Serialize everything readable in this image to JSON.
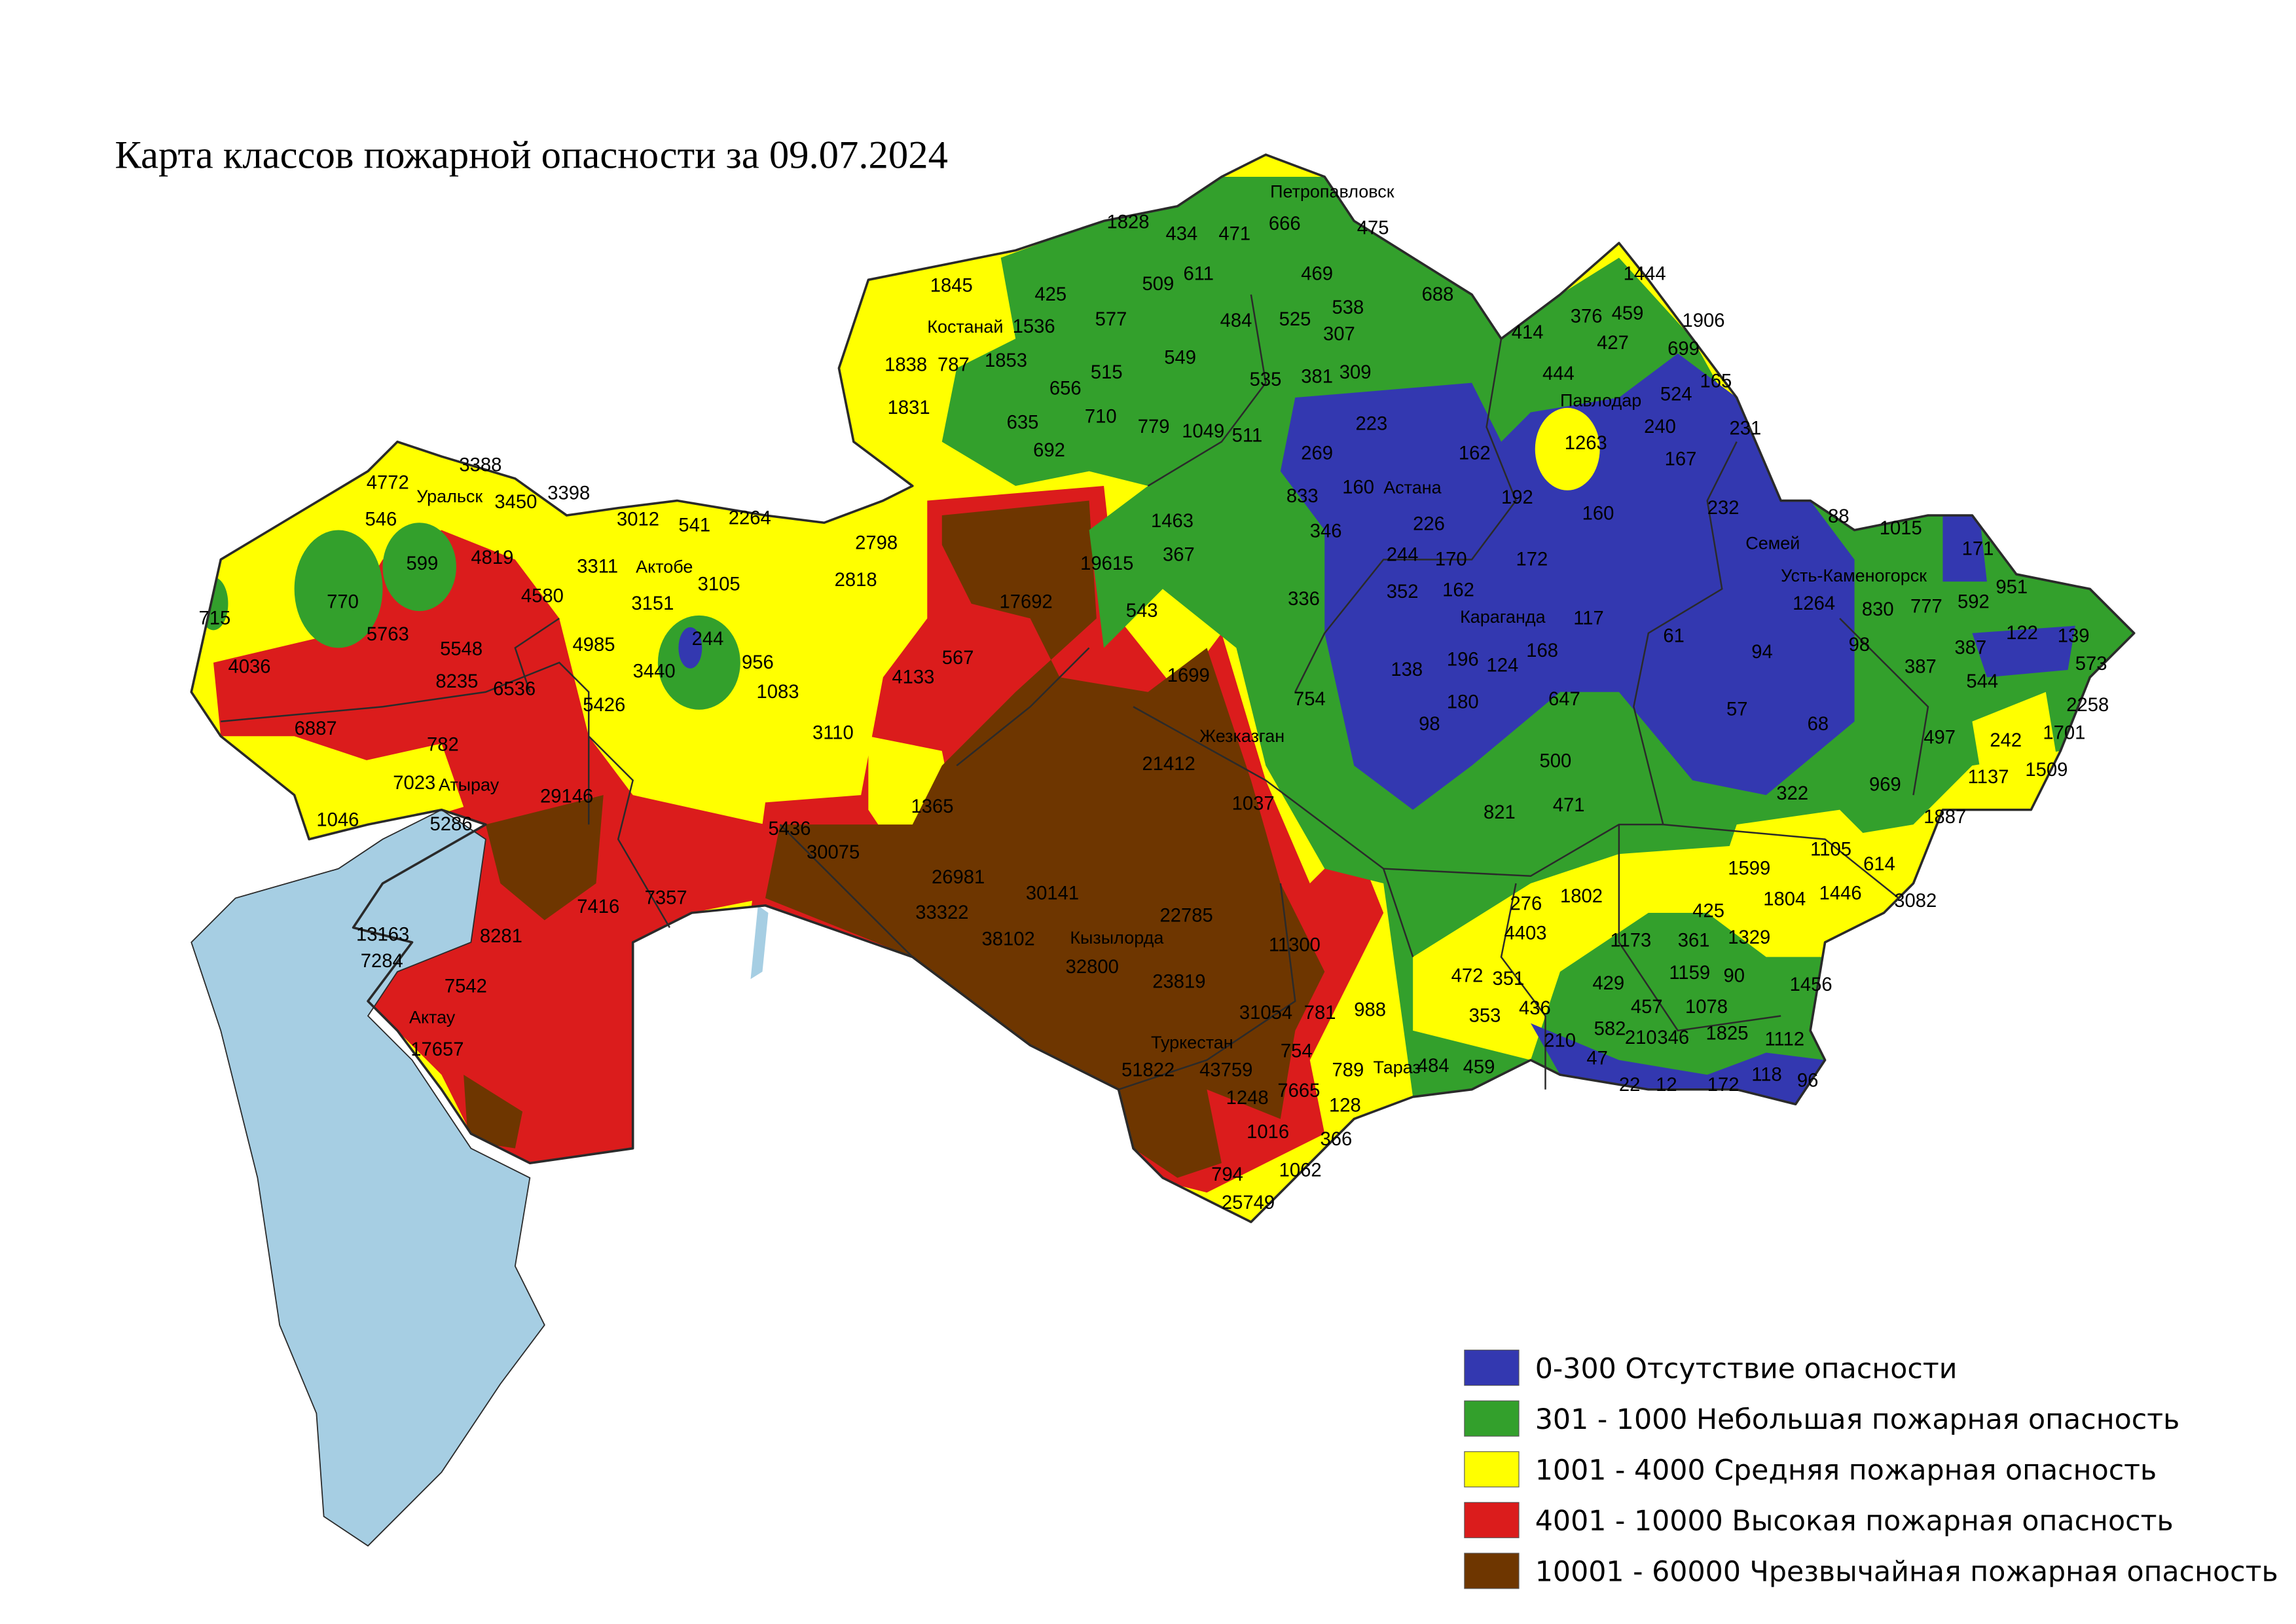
{
  "title": "Карта классов пожарной опасности за 09.07.2024",
  "colors": {
    "none": "#3338b0",
    "low": "#33a02c",
    "medium": "#ffff00",
    "high": "#db1c1c",
    "extreme": "#6e3600",
    "water": "#a6cee3"
  },
  "legend": [
    {
      "label": "0-300 Отсутствие опасности",
      "color": "#3338b0"
    },
    {
      "label": "301 - 1000 Небольшая пожарная опасность",
      "color": "#33a02c"
    },
    {
      "label": "1001 - 4000 Средняя пожарная опасность",
      "color": "#ffff00"
    },
    {
      "label": "4001 - 10000 Высокая пожарная опасность",
      "color": "#db1c1c"
    },
    {
      "label": "10001 - 60000 Чрезвычайная пожарная опасность",
      "color": "#6e3600"
    }
  ],
  "cities": [
    "Петропавловск",
    "Костанай",
    "Уральск",
    "Актобе",
    "Астана",
    "Павлодар",
    "Семей",
    "Усть-Каменогорск",
    "Караганда",
    "Жезказган",
    "Атырау",
    "Актау",
    "Кызылорда",
    "Туркестан",
    "Тараз"
  ],
  "values": [
    "1828",
    "434",
    "471",
    "666",
    "475",
    "1845",
    "425",
    "509",
    "611",
    "469",
    "688",
    "538",
    "525",
    "484",
    "307",
    "1536",
    "577",
    "1838",
    "787",
    "1853",
    "549",
    "515",
    "656",
    "535",
    "381",
    "309",
    "1831",
    "635",
    "710",
    "779",
    "1049",
    "511",
    "692",
    "223",
    "269",
    "162",
    "833",
    "160",
    "192",
    "346",
    "226",
    "1463",
    "19615",
    "367",
    "244",
    "170",
    "172",
    "352",
    "162",
    "336",
    "543",
    "17692",
    "2798",
    "2818",
    "3012",
    "541",
    "2264",
    "3388",
    "3398",
    "3450",
    "4772",
    "546",
    "599",
    "4819",
    "3311",
    "3151",
    "3105",
    "4580",
    "770",
    "715",
    "5763",
    "5548",
    "4985",
    "244",
    "3440",
    "956",
    "1083",
    "4036",
    "8235",
    "6536",
    "5426",
    "4133",
    "567",
    "1699",
    "6887",
    "782",
    "7023",
    "3110",
    "21412",
    "1046",
    "5286",
    "29146",
    "1365",
    "5436",
    "30075",
    "1037",
    "26981",
    "30141",
    "33322",
    "22785",
    "38102",
    "32800",
    "11300",
    "7416",
    "7357",
    "8281",
    "13163",
    "7284",
    "7542",
    "17657",
    "23819",
    "31054",
    "781",
    "988",
    "754",
    "51822",
    "43759",
    "789",
    "1248",
    "7665",
    "128",
    "1016",
    "366",
    "1062",
    "794",
    "25749",
    "1444",
    "376",
    "459",
    "1906",
    "414",
    "427",
    "699",
    "444",
    "165",
    "524",
    "1263",
    "240",
    "231",
    "167",
    "232",
    "160",
    "88",
    "1015",
    "171",
    "951",
    "1264",
    "830",
    "777",
    "592",
    "122",
    "139",
    "117",
    "61",
    "94",
    "98",
    "387",
    "387",
    "573",
    "544",
    "168",
    "196",
    "124",
    "138",
    "180",
    "57",
    "68",
    "647",
    "98",
    "2258",
    "1701",
    "497",
    "242",
    "1137",
    "1509",
    "754",
    "500",
    "322",
    "969",
    "471",
    "1887",
    "821",
    "1599",
    "1105",
    "614",
    "1804",
    "1446",
    "3082",
    "276",
    "1802",
    "425",
    "4403",
    "1173",
    "361",
    "1329",
    "1159",
    "90",
    "472",
    "351",
    "429",
    "1456",
    "457",
    "1078",
    "353",
    "436",
    "582",
    "210",
    "210",
    "346",
    "1825",
    "1112",
    "47",
    "484",
    "459",
    "22",
    "12",
    "172",
    "118",
    "96"
  ]
}
